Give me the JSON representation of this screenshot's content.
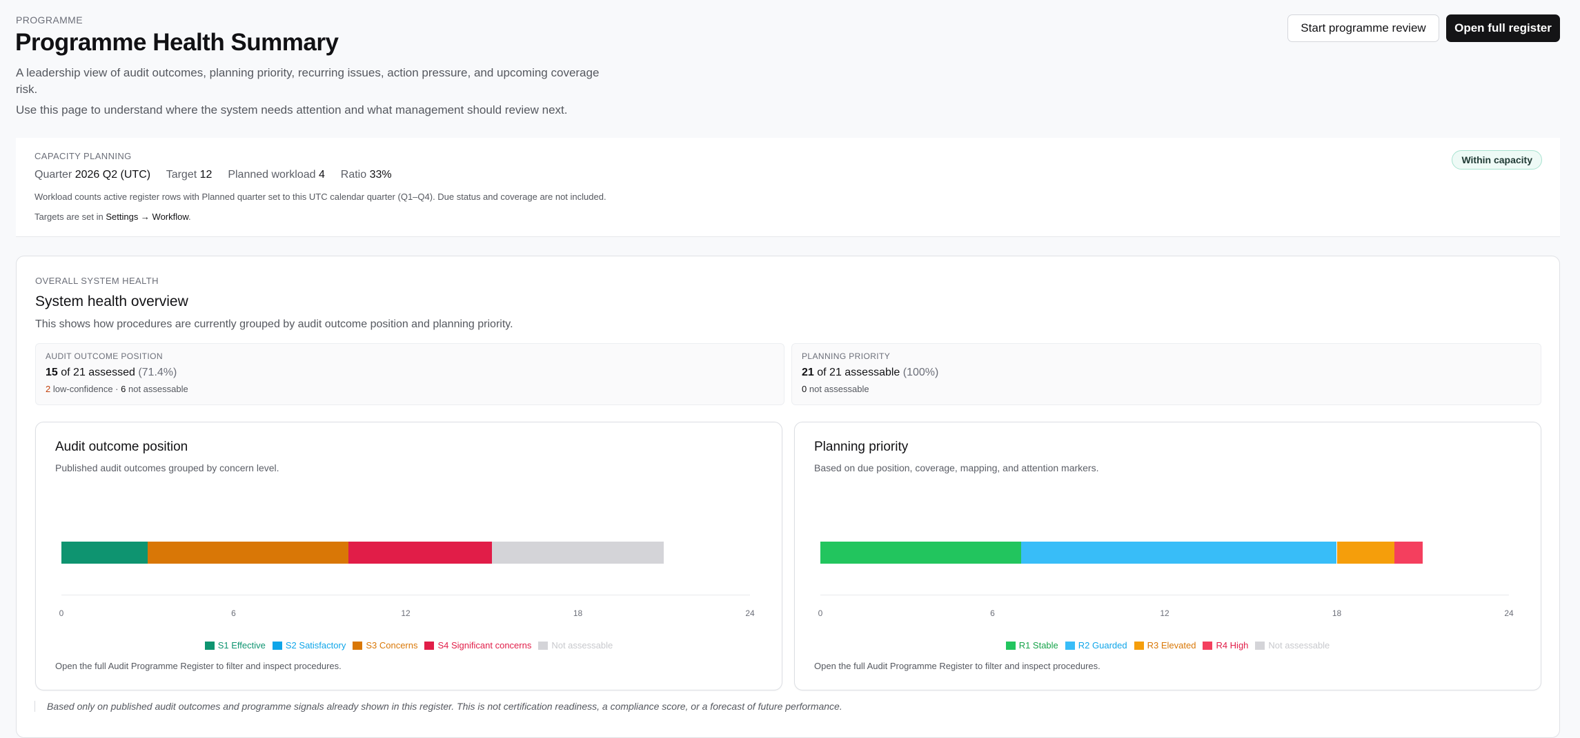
{
  "header": {
    "eyebrow": "PROGRAMME",
    "title": "Programme Health Summary",
    "desc1": "A leadership view of audit outcomes, planning priority, recurring issues, action pressure, and upcoming coverage",
    "desc1b": "risk.",
    "desc2": "Use this page to understand where the system needs attention and what management should review next.",
    "review_button": "Start programme review",
    "register_button": "Open full register"
  },
  "capacity": {
    "eyebrow": "CAPACITY PLANNING",
    "quarter_label": "Quarter",
    "quarter_value": "2026 Q2 (UTC)",
    "target_label": "Target",
    "target_value": "12",
    "workload_label": "Planned workload",
    "workload_value": "4",
    "ratio_label": "Ratio",
    "ratio_value": "33%",
    "note1": "Workload counts active register rows with Planned quarter set to this UTC calendar quarter (Q1–Q4). Due status and coverage are not included.",
    "note2_prefix": "Targets are set in",
    "note2_link": "Settings → Workflow",
    "note2_suffix": ".",
    "status_badge": "Within capacity"
  },
  "health": {
    "eyebrow": "OVERALL SYSTEM HEALTH",
    "title": "System health overview",
    "desc": "This shows how procedures are currently grouped by audit outcome position and planning priority.",
    "audit_summary": {
      "eyebrow": "AUDIT OUTCOME POSITION",
      "count": "15",
      "of_text": "of 21 assessed",
      "pct": "(71.4%)",
      "low_conf_count": "2",
      "low_conf_text": "low-confidence ·",
      "not_assess_count": "6",
      "not_assess_text": "not assessable"
    },
    "planning_summary": {
      "eyebrow": "PLANNING PRIORITY",
      "count": "21",
      "of_text": "of 21 assessable",
      "pct": "(100%)",
      "not_assess_count": "0",
      "not_assess_text": "not assessable"
    },
    "footnote": "Based only on published audit outcomes and programme signals already shown in this register. This is not certification readiness, a compliance score, or a forecast of future performance."
  },
  "chart_data": [
    {
      "type": "bar",
      "orientation": "horizontal-stacked",
      "title": "Audit outcome position",
      "subtitle": "Published audit outcomes grouped by concern level.",
      "xlim": [
        0,
        24
      ],
      "ticks": [
        "0",
        "6",
        "12",
        "18",
        "24"
      ],
      "series": [
        {
          "name": "S1 Effective",
          "value": 3,
          "color": "#0e9470",
          "text_color": "#0e9470"
        },
        {
          "name": "S2 Satisfactory",
          "value": 0,
          "color": "#0ea5e9",
          "text_color": "#0ea5e9"
        },
        {
          "name": "S3 Concerns",
          "value": 7,
          "color": "#d97706",
          "text_color": "#d97706"
        },
        {
          "name": "S4 Significant concerns",
          "value": 5,
          "color": "#e11d48",
          "text_color": "#e11d48"
        },
        {
          "name": "Not assessable",
          "value": 6,
          "color": "#d4d4d8",
          "text_color": "#c8c9cd"
        }
      ],
      "footer": "Open the full Audit Programme Register to filter and inspect procedures."
    },
    {
      "type": "bar",
      "orientation": "horizontal-stacked",
      "title": "Planning priority",
      "subtitle": "Based on due position, coverage, mapping, and attention markers.",
      "xlim": [
        0,
        24
      ],
      "ticks": [
        "0",
        "6",
        "12",
        "18",
        "24"
      ],
      "series": [
        {
          "name": "R1 Stable",
          "value": 7,
          "color": "#22c55e",
          "text_color": "#16a34a"
        },
        {
          "name": "R2 Guarded",
          "value": 11,
          "color": "#38bdf8",
          "text_color": "#0ea5e9"
        },
        {
          "name": "R3 Elevated",
          "value": 2,
          "color": "#f59e0b",
          "text_color": "#d97706"
        },
        {
          "name": "R4 High",
          "value": 1,
          "color": "#f43f5e",
          "text_color": "#e11d48"
        },
        {
          "name": "Not assessable",
          "value": 0,
          "color": "#d4d4d8",
          "text_color": "#c8c9cd"
        }
      ],
      "footer": "Open the full Audit Programme Register to filter and inspect procedures."
    }
  ]
}
